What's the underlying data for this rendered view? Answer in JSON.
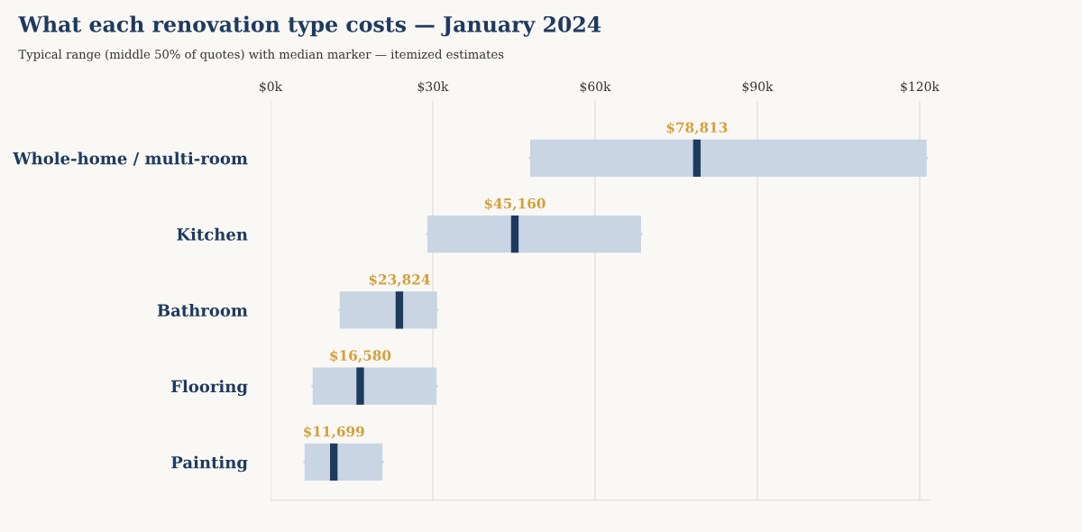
{
  "chart_data": {
    "type": "box",
    "orientation": "horizontal",
    "title": "What each renovation type costs — January 2024",
    "subtitle": "Typical range (middle 50% of quotes) with median marker — itemized estimates",
    "categories": [
      "Whole-home / multi-room",
      "Kitchen",
      "Bathroom",
      "Flooring",
      "Painting"
    ],
    "series": [
      {
        "color": "#c9d5e3",
        "boxes": [
          {
            "low": 48000,
            "q1": 48000,
            "median": 78813,
            "q3": 121300,
            "high": 121300
          },
          {
            "low": 29000,
            "q1": 29000,
            "median": 45160,
            "q3": 68500,
            "high": 68500
          },
          {
            "low": 12800,
            "q1": 12800,
            "median": 23824,
            "q3": 30800,
            "high": 30800
          },
          {
            "low": 7800,
            "q1": 7800,
            "median": 16580,
            "q3": 30700,
            "high": 30700
          },
          {
            "low": 6300,
            "q1": 6300,
            "median": 11699,
            "q3": 20700,
            "high": 20700
          }
        ]
      }
    ],
    "annotations": [
      {
        "text": "$78,813",
        "x": 78813,
        "y": "Whole-home / multi-room"
      },
      {
        "text": "$45,160",
        "x": 45160,
        "y": "Kitchen"
      },
      {
        "text": "$23,824",
        "x": 23824,
        "y": "Bathroom"
      },
      {
        "text": "$16,580",
        "x": 16580,
        "y": "Flooring"
      },
      {
        "text": "$11,699",
        "x": 11699,
        "y": "Painting"
      }
    ],
    "xlim": [
      0,
      122000
    ],
    "xticks": [
      {
        "value": 0,
        "label": "$0k"
      },
      {
        "value": 30000,
        "label": "$30k"
      },
      {
        "value": 60000,
        "label": "$60k"
      },
      {
        "value": 90000,
        "label": "$90k"
      },
      {
        "value": 120000,
        "label": "$120k"
      }
    ],
    "grid": "x"
  }
}
